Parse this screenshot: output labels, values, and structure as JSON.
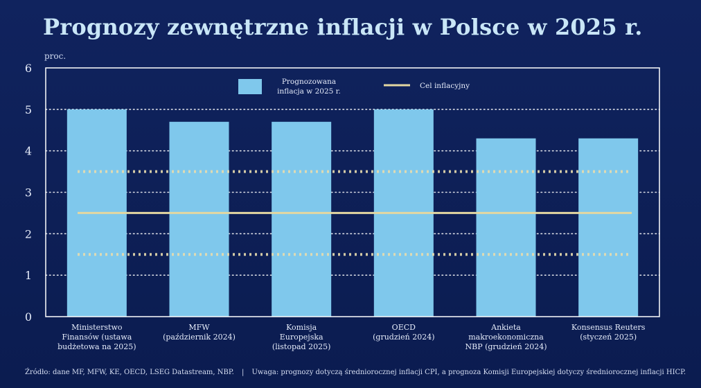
{
  "slide": {
    "title": "Prognozy zewnętrzne inflacji w Polsce w 2025 r.",
    "unit": "proc.",
    "source": "Źródło: dane MF, MFW, KE, OECD, LSEG Datastream, NBP.",
    "separator": "|",
    "note": "Uwaga: prognozy dotyczą średniorocznej inflacji CPI, a prognoza Komisji Europejskiej dotyczy średniorocznej inflacji HICP."
  },
  "colors": {
    "background": "#0d1f55",
    "bar": "#7fc8ec",
    "target_line": "#e3d7a1",
    "band_line": "#e8dcae",
    "grid": "#ffffff"
  },
  "chart_data": {
    "type": "bar",
    "categories": [
      "Ministerstwo\nFinansów (ustawa\nbudżetowa na 2025)",
      "MFW\n(październik 2024)",
      "Komisja\nEuropejska\n(listopad 2025)",
      "OECD\n(grudzień 2024)",
      "Ankieta\nmakroekonomiczna\nNBP (grudzień 2024)",
      "Konsensus Reuters\n(styczeń 2025)"
    ],
    "series": [
      {
        "name": "Prognozowana inflacja w 2025 r.",
        "values": [
          5.0,
          4.7,
          4.7,
          5.0,
          4.3,
          4.3
        ]
      }
    ],
    "target": {
      "name": "Cel inflacyjny",
      "value": 2.5,
      "band": [
        1.5,
        3.5
      ]
    },
    "legend": {
      "bar_label": "Prognozowana\ninflacja w 2025 r.",
      "line_label": "Cel inflacyjny",
      "position": "top-center"
    },
    "ylim": [
      0,
      6
    ],
    "yticks": [
      0,
      1,
      2,
      3,
      4,
      5,
      6
    ],
    "grid": true
  }
}
